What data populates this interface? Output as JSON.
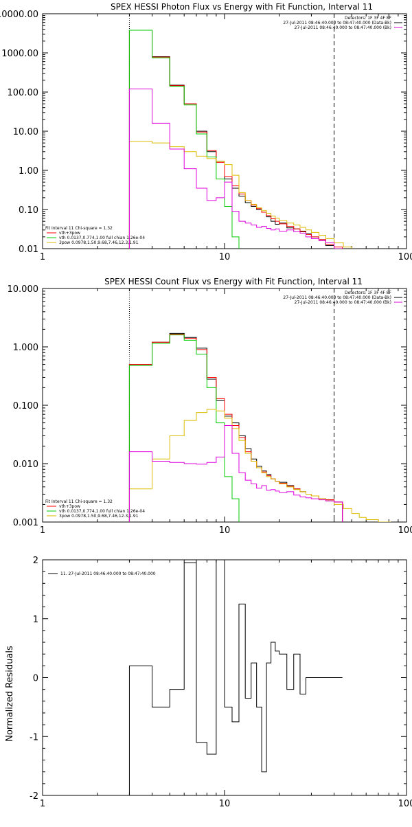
{
  "chart_data": [
    {
      "type": "line",
      "title": "SPEX HESSI Photon Flux vs Energy with Fit Function, Interval 11",
      "xlabel": "",
      "ylabel": "",
      "xscale": "log",
      "yscale": "log",
      "xlim": [
        1,
        100
      ],
      "ylim": [
        0.01,
        10000
      ],
      "x_ticks": [
        {
          "v": 1,
          "label": "1"
        },
        {
          "v": 10,
          "label": "10"
        },
        {
          "v": 100,
          "label": "100"
        }
      ],
      "y_ticks": [
        {
          "v": 0.01,
          "label": "0.01"
        },
        {
          "v": 0.1,
          "label": "0.10"
        },
        {
          "v": 1,
          "label": "1.00"
        },
        {
          "v": 10,
          "label": "10.00"
        },
        {
          "v": 100,
          "label": "100.00"
        },
        {
          "v": 1000,
          "label": "1000.00"
        },
        {
          "v": 10000,
          "label": "10000.00"
        }
      ],
      "vlines": [
        {
          "x": 3,
          "style": "dotted"
        },
        {
          "x": 40,
          "style": "dashed"
        }
      ],
      "legend_top_right": [
        "Detectors: 1F 3F 4F 8F",
        "27-Jul-2011 08:46:40.000 to 08:47:40.000 (Data-Bk)",
        "27-Jul-2011 08:46:40.000 to 08:47:40.000 (Bk)"
      ],
      "legend_bottom_left": [
        "Fit Interval 11    Chi-square = 1.32",
        "vth+3pow",
        "vth 0.0137,0.774,1.00  full chian 1.26e-04",
        "3pow 0.0978,1.50,9.68,7.46,12.3,1.91"
      ],
      "series": [
        {
          "name": "Data-Bk",
          "color": "#000000",
          "x": [
            3,
            4,
            5,
            6,
            7,
            8,
            9,
            10,
            11,
            12,
            13,
            14,
            15,
            16,
            17,
            18,
            19,
            20,
            22,
            24,
            26,
            28,
            30,
            33,
            36,
            40
          ],
          "values": [
            3800,
            800,
            150,
            50,
            10,
            3.0,
            1.7,
            0.6,
            0.35,
            0.22,
            0.15,
            0.12,
            0.1,
            0.085,
            0.065,
            0.05,
            0.042,
            0.045,
            0.034,
            0.032,
            0.028,
            0.024,
            0.02,
            0.017,
            0.012,
            0.01
          ]
        },
        {
          "name": "vth+3pow",
          "color": "#ff0000",
          "x": [
            3,
            4,
            5,
            6,
            7,
            8,
            9,
            10,
            11,
            12,
            13,
            14,
            15,
            16,
            17,
            18,
            19,
            20,
            22,
            24,
            26,
            28,
            30,
            33,
            36,
            40
          ],
          "values": [
            3800,
            780,
            145,
            50,
            9.5,
            3.2,
            1.6,
            0.7,
            0.4,
            0.25,
            0.17,
            0.13,
            0.105,
            0.085,
            0.07,
            0.058,
            0.05,
            0.043,
            0.037,
            0.032,
            0.027,
            0.023,
            0.02,
            0.017,
            0.013,
            0.011
          ]
        },
        {
          "name": "vth",
          "color": "#00cc00",
          "x": [
            3,
            4,
            5,
            6,
            7,
            8,
            9,
            10,
            11,
            12
          ],
          "values": [
            3800,
            750,
            140,
            47,
            8.5,
            2.2,
            0.6,
            0.12,
            0.02,
            0.005
          ]
        },
        {
          "name": "3pow",
          "color": "#ddbb00",
          "x": [
            3,
            4,
            5,
            6,
            7,
            8,
            9,
            10,
            11,
            12,
            13,
            14,
            15,
            16,
            17,
            18,
            19,
            20,
            22,
            24,
            26,
            28,
            30,
            33,
            36,
            40,
            45,
            50,
            55,
            60
          ],
          "values": [
            5.5,
            5.0,
            4.0,
            3.0,
            2.3,
            2.0,
            1.7,
            1.4,
            0.75,
            0.27,
            0.17,
            0.135,
            0.11,
            0.093,
            0.08,
            0.068,
            0.06,
            0.052,
            0.045,
            0.04,
            0.035,
            0.03,
            0.026,
            0.022,
            0.018,
            0.014,
            0.011,
            0.009,
            0.008,
            0.007
          ]
        },
        {
          "name": "Bk",
          "color": "#dd00dd",
          "x": [
            3,
            4,
            5,
            6,
            7,
            8,
            9,
            10,
            11,
            12,
            13,
            14,
            15,
            16,
            17,
            18,
            19,
            20,
            22,
            24,
            26,
            28,
            30,
            33,
            36,
            40
          ],
          "values": [
            120,
            16,
            3.5,
            1.1,
            0.35,
            0.17,
            0.2,
            0.5,
            0.09,
            0.05,
            0.045,
            0.04,
            0.035,
            0.037,
            0.033,
            0.03,
            0.032,
            0.028,
            0.03,
            0.027,
            0.025,
            0.02,
            0.018,
            0.016,
            0.014,
            0.01
          ]
        }
      ]
    },
    {
      "type": "line",
      "title": "SPEX HESSI Count Flux vs Energy with Fit Function, Interval 11",
      "xlabel": "",
      "ylabel": "",
      "xscale": "log",
      "yscale": "log",
      "xlim": [
        1,
        100
      ],
      "ylim": [
        0.001,
        10
      ],
      "x_ticks": [
        {
          "v": 1,
          "label": "1"
        },
        {
          "v": 10,
          "label": "10"
        },
        {
          "v": 100,
          "label": "100"
        }
      ],
      "y_ticks": [
        {
          "v": 0.001,
          "label": "0.001"
        },
        {
          "v": 0.01,
          "label": "0.010"
        },
        {
          "v": 0.1,
          "label": "0.100"
        },
        {
          "v": 1,
          "label": "1.000"
        },
        {
          "v": 10,
          "label": "10.000"
        }
      ],
      "vlines": [
        {
          "x": 3,
          "style": "dotted"
        },
        {
          "x": 40,
          "style": "dashed"
        }
      ],
      "legend_top_right": [
        "Detectors: 1F 3F 4F 8F",
        "27-Jul-2011 08:46:40.000 to 08:47:40.000 (Data-Bk)",
        "27-Jul-2011 08:46:40.000 to 08:47:40.000 (Bk)"
      ],
      "legend_bottom_left": [
        "Fit Interval 11    Chi-square = 1.32",
        "vth+3pow",
        "vth 0.0137,0.774,1.00  full chian 1.26e-04",
        "3pow 0.0978,1.50,9.68,7.46,12.3,1.91"
      ],
      "series": [
        {
          "name": "Data-Bk",
          "color": "#000000",
          "x": [
            3,
            4,
            5,
            6,
            7,
            8,
            9,
            10,
            11,
            12,
            13,
            14,
            15,
            16,
            17,
            18,
            19,
            20,
            22,
            24,
            26,
            28,
            30,
            33,
            36,
            40
          ],
          "values": [
            0.5,
            1.2,
            1.7,
            1.45,
            0.95,
            0.28,
            0.12,
            0.065,
            0.05,
            0.03,
            0.018,
            0.012,
            0.009,
            0.0075,
            0.0065,
            0.0055,
            0.005,
            0.0048,
            0.0042,
            0.0037,
            0.0033,
            0.003,
            0.0028,
            0.0025,
            0.0024,
            0.0022
          ]
        },
        {
          "name": "vth+3pow",
          "color": "#ff0000",
          "x": [
            3,
            4,
            5,
            6,
            7,
            8,
            9,
            10,
            11,
            12,
            13,
            14,
            15,
            16,
            17,
            18,
            19,
            20,
            22,
            24,
            26,
            28,
            30,
            33,
            36,
            40
          ],
          "values": [
            0.5,
            1.2,
            1.65,
            1.4,
            0.9,
            0.3,
            0.13,
            0.07,
            0.045,
            0.028,
            0.016,
            0.011,
            0.0085,
            0.0072,
            0.0062,
            0.0055,
            0.005,
            0.0046,
            0.0041,
            0.0037,
            0.0033,
            0.003,
            0.0028,
            0.0025,
            0.0024,
            0.0022
          ]
        },
        {
          "name": "vth",
          "color": "#00cc00",
          "x": [
            3,
            4,
            5,
            6,
            7,
            8,
            9,
            10,
            11,
            12
          ],
          "values": [
            0.48,
            1.15,
            1.6,
            1.3,
            0.75,
            0.2,
            0.05,
            0.006,
            0.0025,
            0.0008
          ]
        },
        {
          "name": "3pow",
          "color": "#ddbb00",
          "x": [
            3,
            4,
            5,
            6,
            7,
            8,
            9,
            10,
            11,
            12,
            13,
            14,
            15,
            16,
            17,
            18,
            19,
            20,
            22,
            24,
            26,
            28,
            30,
            33,
            36,
            40,
            45,
            50,
            55,
            60,
            70
          ],
          "values": [
            0.0037,
            0.012,
            0.03,
            0.055,
            0.075,
            0.085,
            0.08,
            0.06,
            0.04,
            0.025,
            0.015,
            0.011,
            0.0085,
            0.007,
            0.006,
            0.0055,
            0.005,
            0.0045,
            0.004,
            0.0036,
            0.0033,
            0.003,
            0.0028,
            0.0025,
            0.0023,
            0.002,
            0.0017,
            0.0014,
            0.0012,
            0.0011,
            0.001
          ]
        },
        {
          "name": "Bk",
          "color": "#dd00dd",
          "x": [
            3,
            4,
            5,
            6,
            7,
            8,
            9,
            10,
            11,
            12,
            13,
            14,
            15,
            16,
            17,
            18,
            19,
            20,
            22,
            24,
            26,
            28,
            30,
            33,
            36,
            40
          ],
          "values": [
            0.016,
            0.011,
            0.0105,
            0.01,
            0.0098,
            0.0105,
            0.013,
            0.045,
            0.015,
            0.007,
            0.0052,
            0.0045,
            0.0038,
            0.0042,
            0.0035,
            0.0036,
            0.0034,
            0.0032,
            0.0033,
            0.0029,
            0.0027,
            0.0026,
            0.0025,
            0.0024,
            0.0023,
            0.0022
          ]
        }
      ]
    },
    {
      "type": "line",
      "title": "",
      "xlabel": "",
      "ylabel": "Normalized Residuals",
      "xscale": "log",
      "yscale": "linear",
      "xlim": [
        1,
        100
      ],
      "ylim": [
        -2,
        2
      ],
      "x_ticks": [
        {
          "v": 1,
          "label": "1"
        },
        {
          "v": 10,
          "label": "10"
        },
        {
          "v": 100,
          "label": "100"
        }
      ],
      "y_ticks": [
        {
          "v": -2,
          "label": "-2"
        },
        {
          "v": -1,
          "label": "-1"
        },
        {
          "v": 0,
          "label": "0"
        },
        {
          "v": 1,
          "label": "1"
        },
        {
          "v": 2,
          "label": "2"
        }
      ],
      "legend_top_left": [
        "11. 27-Jul-2011 08:46:40.000 to 08:47:40.000"
      ],
      "series": [
        {
          "name": "",
          "color": "#000000",
          "x": [
            3,
            4,
            5,
            6,
            7,
            8,
            9,
            10,
            11,
            12,
            13,
            14,
            15,
            16,
            17,
            18,
            19,
            20,
            22,
            24,
            26,
            28,
            30,
            33,
            36,
            40
          ],
          "values": [
            0.2,
            -0.5,
            -0.2,
            1.95,
            -1.1,
            -1.3,
            2.0,
            -0.5,
            -0.75,
            1.25,
            -0.35,
            0.25,
            -0.5,
            -1.6,
            0.25,
            0.6,
            0.45,
            0.4,
            -0.2,
            0.4,
            -0.28,
            0.0,
            0.0,
            0.0,
            0.0,
            0.0
          ]
        }
      ]
    }
  ]
}
